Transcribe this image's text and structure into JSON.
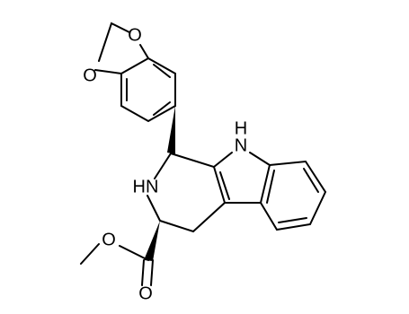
{
  "atoms": {
    "dioxole_o_top": "O",
    "dioxole_o_left": "O",
    "indole_nh_h": "H",
    "indole_nh_n": "N",
    "piperidine_nh": "HN",
    "ester_o_single": "O",
    "ester_o_double": "O"
  }
}
